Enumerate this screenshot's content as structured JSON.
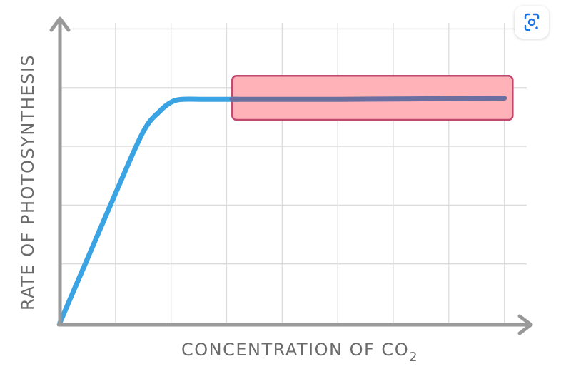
{
  "chart_data": {
    "type": "line",
    "title": "",
    "xlabel": "CONCENTRATION OF CO",
    "xlabel_subscript": "2",
    "ylabel": "RATE OF PHOTOSYNTHESIS",
    "grid": true,
    "series": [
      {
        "color": "#3aa3e3",
        "x": [
          0,
          0.5,
          1,
          1.5,
          1.8,
          2,
          2.2,
          2.6,
          3,
          3.2
        ],
        "y": [
          0,
          1.1,
          2.2,
          3.25,
          3.6,
          3.75,
          3.8,
          3.8,
          3.8,
          3.8
        ]
      },
      {
        "color": "#6a6fa0",
        "x": [
          3.1,
          5,
          8
        ],
        "y": [
          3.8,
          3.8,
          3.82
        ]
      }
    ],
    "highlight": {
      "x": [
        3.1,
        8.15
      ],
      "y": [
        3.45,
        4.2
      ],
      "fill": "#ffb3b8",
      "stroke": "#c2486e"
    },
    "xlim": [
      0,
      8.3
    ],
    "ylim": [
      0,
      5.2
    ],
    "colors": {
      "axis": "#9a9a9a",
      "grid": "#dcdcdc",
      "text": "#6b6b6b"
    }
  },
  "toolbar": {
    "lens_icon": "google-lens-icon"
  }
}
